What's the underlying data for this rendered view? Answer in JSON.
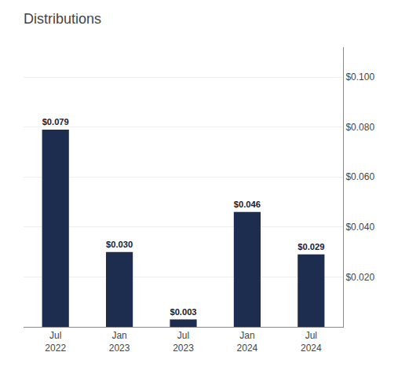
{
  "chart_data": {
    "type": "bar",
    "title": "Distributions",
    "categories": [
      "Jul\n2022",
      "Jan\n2023",
      "Jul\n2023",
      "Jan\n2024",
      "Jul\n2024"
    ],
    "values": [
      0.079,
      0.03,
      0.003,
      0.046,
      0.029
    ],
    "value_labels": [
      "$0.079",
      "$0.030",
      "$0.003",
      "$0.046",
      "$0.029"
    ],
    "data_labels": true,
    "color": "#1c2d4f",
    "ylim": [
      0,
      0.112
    ],
    "yticks": [
      {
        "value": 0.02,
        "label": "$0.020"
      },
      {
        "value": 0.04,
        "label": "$0.040"
      },
      {
        "value": 0.06,
        "label": "$0.060"
      },
      {
        "value": 0.08,
        "label": "$0.080"
      },
      {
        "value": 0.1,
        "label": "$0.100"
      }
    ],
    "grid": true
  }
}
